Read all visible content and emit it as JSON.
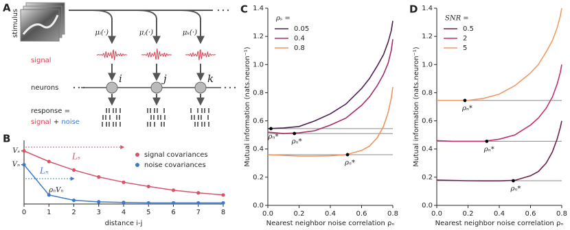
{
  "diagram": {
    "panel_label": "A",
    "stimulus": "stimulus",
    "tuning": [
      "μᵢ(·)",
      "μⱼ(·)",
      "μₖ(·)"
    ],
    "signal": "signal",
    "neurons": "neurons",
    "neuron_labels": [
      "i",
      "j",
      "k"
    ],
    "response": "response =",
    "response_signal": "signal",
    "plus": "+",
    "response_noise": "noise"
  },
  "chart_data": [
    {
      "type": "line-markers",
      "panel_label": "B",
      "x_label": "distance i-j",
      "x": [
        0,
        1,
        2,
        3,
        4,
        5,
        6,
        7,
        8
      ],
      "xlim": [
        0,
        8
      ],
      "xticks": [
        0,
        1,
        2,
        3,
        4,
        5,
        6,
        7,
        8
      ],
      "ylim": [
        0,
        1.2
      ],
      "yticks": [
        {
          "value": 0.74,
          "label": "Vₙ"
        },
        {
          "value": 1,
          "label": "Vₛ"
        }
      ],
      "legend": "center right",
      "series": [
        {
          "name": "signal covariances",
          "color": "#d6546a",
          "values": [
            1,
            0.8,
            0.64,
            0.51,
            0.41,
            0.33,
            0.26,
            0.21,
            0.17
          ]
        },
        {
          "name": "noise covariances",
          "color": "#3d78c9",
          "values": [
            0.74,
            0.17,
            0.07,
            0.04,
            0.03,
            0.02,
            0.02,
            0.02,
            0.02
          ]
        }
      ],
      "annotations": {
        "length_signal": "Lₛ",
        "length_noise": "Lₙ",
        "noise_step": "ρₙVₙ"
      }
    },
    {
      "type": "line",
      "panel_label": "C",
      "x_label": "Nearest neighbor noise correlation ρₙ",
      "y_label": "Mutual information (nats.neuron⁻¹)",
      "legend_title": "ρₛ =",
      "legend": "upper left",
      "x": [
        0,
        0.1,
        0.2,
        0.3,
        0.4,
        0.5,
        0.6,
        0.65,
        0.7,
        0.74,
        0.77,
        0.79,
        0.8
      ],
      "xlim": [
        0,
        0.8
      ],
      "xticks": [
        {
          "value": 0,
          "label": "0.0"
        },
        0.2,
        0.4,
        0.6,
        0.8
      ],
      "ylim": [
        0,
        1.4
      ],
      "yticks": [
        {
          "value": 0,
          "label": "0.0"
        },
        0.2,
        0.4,
        0.6,
        0.8,
        {
          "value": 1,
          "label": "1.0"
        },
        1.2,
        1.4
      ],
      "series": [
        {
          "name": "0.05",
          "color": "#4b1e52",
          "values": [
            0.545,
            0.55,
            0.56,
            0.6,
            0.65,
            0.72,
            0.83,
            0.9,
            0.99,
            1.07,
            1.16,
            1.24,
            1.31
          ]
        },
        {
          "name": "0.4",
          "color": "#a62a68",
          "values": [
            0.52,
            0.51,
            0.515,
            0.53,
            0.57,
            0.62,
            0.71,
            0.77,
            0.85,
            0.93,
            1.01,
            1.1,
            1.18
          ]
        },
        {
          "name": "0.8",
          "color": "#f0935e",
          "values": [
            0.36,
            0.355,
            0.35,
            0.35,
            0.352,
            0.36,
            0.39,
            0.42,
            0.48,
            0.56,
            0.66,
            0.76,
            0.84
          ]
        }
      ],
      "optima": [
        {
          "x": 0.02,
          "y": 0.545,
          "label": "ρₙ*"
        },
        {
          "x": 0.17,
          "y": 0.51,
          "label": "ρₙ*"
        },
        {
          "x": 0.51,
          "y": 0.36,
          "label": "ρₙ*"
        }
      ]
    },
    {
      "type": "line",
      "panel_label": "D",
      "x_label": "Nearest neighbor noise correlation ρₙ",
      "y_label": "Mutual information (nats.neuron⁻¹)",
      "legend_title": "SNR =",
      "legend": "upper left",
      "x": [
        0,
        0.1,
        0.2,
        0.3,
        0.4,
        0.5,
        0.6,
        0.65,
        0.7,
        0.74,
        0.77,
        0.79,
        0.8
      ],
      "xlim": [
        0,
        0.8
      ],
      "xticks": [
        {
          "value": 0,
          "label": "0.0"
        },
        0.2,
        0.4,
        0.6,
        0.8
      ],
      "ylim": [
        0,
        1.4
      ],
      "yticks": [
        {
          "value": 0,
          "label": "0.0"
        },
        0.2,
        0.4,
        0.6,
        0.8,
        {
          "value": 1,
          "label": "1.0"
        },
        1.2,
        1.4
      ],
      "series": [
        {
          "name": "0.5",
          "color": "#6b1f4a",
          "values": [
            0.18,
            0.177,
            0.175,
            0.174,
            0.174,
            0.178,
            0.21,
            0.24,
            0.3,
            0.38,
            0.47,
            0.55,
            0.6
          ]
        },
        {
          "name": "2",
          "color": "#c42d6d",
          "values": [
            0.46,
            0.455,
            0.455,
            0.455,
            0.47,
            0.5,
            0.57,
            0.62,
            0.69,
            0.77,
            0.86,
            0.94,
            1.0
          ]
        },
        {
          "name": "5",
          "color": "#f29a66",
          "values": [
            0.745,
            0.745,
            0.745,
            0.76,
            0.79,
            0.85,
            0.94,
            1.0,
            1.09,
            1.17,
            1.26,
            1.34,
            1.4
          ]
        }
      ],
      "optima": [
        {
          "x": 0.18,
          "y": 0.745,
          "label": "ρₙ*"
        },
        {
          "x": 0.32,
          "y": 0.455,
          "label": "ρₙ*"
        },
        {
          "x": 0.49,
          "y": 0.175,
          "label": "ρₙ*"
        }
      ]
    }
  ]
}
